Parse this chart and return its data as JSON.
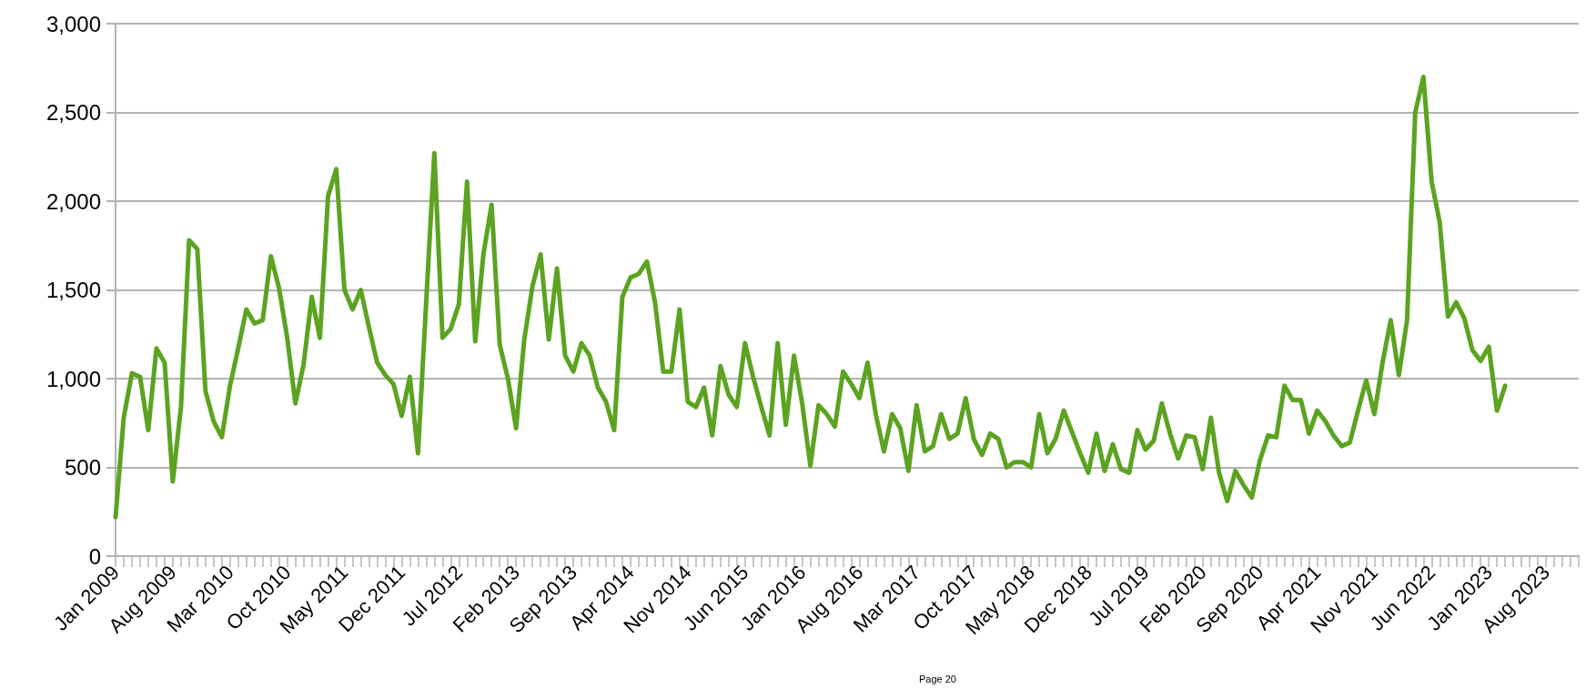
{
  "chart_data": {
    "type": "line",
    "color": "#5ba321",
    "marker": "none",
    "line_style": "solid",
    "grid": "y",
    "ylim": [
      0,
      3000
    ],
    "yticks": [
      0,
      500,
      {
        "value": 1000,
        "label": "1,000"
      },
      {
        "value": 1500,
        "label": "1,500"
      },
      {
        "value": 2000,
        "label": "2,000"
      },
      {
        "value": 2500,
        "label": "2,500"
      },
      {
        "value": 3000,
        "label": "3,000"
      }
    ],
    "annotations": [
      "Page 20"
    ],
    "categories": [
      "Jan 2009",
      null,
      null,
      null,
      null,
      null,
      null,
      "Aug 2009",
      null,
      null,
      null,
      null,
      null,
      null,
      "Mar 2010",
      null,
      null,
      null,
      null,
      null,
      null,
      "Oct 2010",
      null,
      null,
      null,
      null,
      null,
      null,
      "May 2011",
      null,
      null,
      null,
      null,
      null,
      null,
      "Dec 2011",
      null,
      null,
      null,
      null,
      null,
      null,
      "Jul 2012",
      null,
      null,
      null,
      null,
      null,
      null,
      "Feb 2013",
      null,
      null,
      null,
      null,
      null,
      null,
      "Sep 2013",
      null,
      null,
      null,
      null,
      null,
      null,
      "Apr 2014",
      null,
      null,
      null,
      null,
      null,
      null,
      "Nov 2014",
      null,
      null,
      null,
      null,
      null,
      null,
      "Jun 2015",
      null,
      null,
      null,
      null,
      null,
      null,
      "Jan 2016",
      null,
      null,
      null,
      null,
      null,
      null,
      "Aug 2016",
      null,
      null,
      null,
      null,
      null,
      null,
      "Mar 2017",
      null,
      null,
      null,
      null,
      null,
      null,
      "Oct 2017",
      null,
      null,
      null,
      null,
      null,
      null,
      "May 2018",
      null,
      null,
      null,
      null,
      null,
      null,
      "Dec 2018",
      null,
      null,
      null,
      null,
      null,
      null,
      "Jul 2019",
      null,
      null,
      null,
      null,
      null,
      null,
      "Feb 2020",
      null,
      null,
      null,
      null,
      null,
      null,
      "Sep 2020",
      null,
      null,
      null,
      null,
      null,
      null,
      "Apr 2021",
      null,
      null,
      null,
      null,
      null,
      null,
      "Nov 2021",
      null,
      null,
      null,
      null,
      null,
      null,
      "Jun 2022",
      null,
      null,
      null,
      null,
      null,
      null,
      "Jan 2023",
      null,
      null,
      null,
      null,
      null,
      null,
      "Aug 2023",
      null,
      null,
      null,
      null
    ],
    "values": [
      220,
      780,
      1030,
      1010,
      710,
      1170,
      1090,
      420,
      840,
      1780,
      1730,
      930,
      760,
      670,
      960,
      1170,
      1390,
      1310,
      1330,
      1690,
      1510,
      1230,
      860,
      1080,
      1460,
      1230,
      2030,
      2180,
      1500,
      1390,
      1500,
      1290,
      1090,
      1020,
      970,
      790,
      1010,
      580,
      1430,
      2270,
      1230,
      1280,
      1420,
      2110,
      1210,
      1700,
      1980,
      1190,
      1000,
      720,
      1220,
      1520,
      1700,
      1220,
      1620,
      1130,
      1040,
      1200,
      1130,
      950,
      870,
      710,
      1460,
      1570,
      1590,
      1660,
      1430,
      1040,
      1040,
      1390,
      870,
      840,
      950,
      680,
      1070,
      910,
      840,
      1200,
      1010,
      840,
      680,
      1200,
      740,
      1130,
      860,
      510,
      850,
      800,
      730,
      1040,
      970,
      890,
      1090,
      800,
      590,
      800,
      720,
      480,
      850,
      590,
      620,
      800,
      660,
      690,
      890,
      660,
      570,
      690,
      660,
      500,
      530,
      530,
      500,
      800,
      580,
      660,
      820,
      700,
      580,
      470,
      690,
      480,
      630,
      490,
      470,
      710,
      600,
      650,
      860,
      690,
      550,
      680,
      670,
      490,
      780,
      470,
      310,
      480,
      400,
      330,
      540,
      680,
      670,
      960,
      880,
      880,
      690,
      820,
      760,
      680,
      620,
      640,
      820,
      990,
      800,
      1090,
      1330,
      1020,
      1330,
      2500,
      2700,
      2110,
      1880,
      1350,
      1430,
      1340,
      1160,
      1100,
      1180,
      820,
      960,
      null,
      null,
      null,
      null,
      null,
      null,
      null,
      null,
      null
    ]
  }
}
